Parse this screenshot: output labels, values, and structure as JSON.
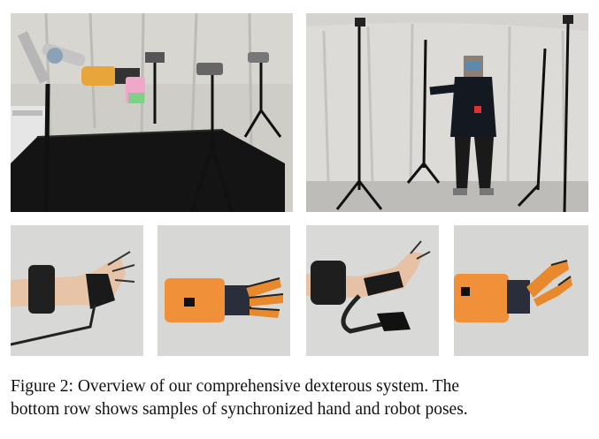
{
  "figure": {
    "caption_line1": "Figure 2: Overview of our comprehensive dexterous system.  The",
    "caption_line2": "bottom row shows samples of synchronized hand and robot poses."
  }
}
